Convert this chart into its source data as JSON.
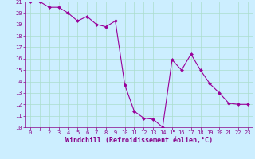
{
  "x": [
    0,
    1,
    2,
    3,
    4,
    5,
    6,
    7,
    8,
    9,
    10,
    11,
    12,
    13,
    14,
    15,
    16,
    17,
    18,
    19,
    20,
    21,
    22,
    23
  ],
  "y": [
    21,
    21,
    20.5,
    20.5,
    20,
    19.3,
    19.7,
    19,
    18.8,
    19.3,
    13.7,
    11.4,
    10.8,
    10.7,
    10.0,
    15.9,
    15.0,
    16.4,
    15.0,
    13.8,
    13.0,
    12.1,
    12.0,
    12.0
  ],
  "line_color": "#990099",
  "marker_color": "#990099",
  "bg_color": "#cceeff",
  "grid_color": "#aaddcc",
  "xlabel": "Windchill (Refroidissement éolien,°C)",
  "ylabel": "",
  "ylim": [
    10,
    21
  ],
  "xlim": [
    -0.5,
    23.5
  ],
  "yticks": [
    10,
    11,
    12,
    13,
    14,
    15,
    16,
    17,
    18,
    19,
    20,
    21
  ],
  "xticks": [
    0,
    1,
    2,
    3,
    4,
    5,
    6,
    7,
    8,
    9,
    10,
    11,
    12,
    13,
    14,
    15,
    16,
    17,
    18,
    19,
    20,
    21,
    22,
    23
  ],
  "tick_color": "#880088",
  "tick_fontsize": 5.0,
  "xlabel_fontsize": 6.0
}
